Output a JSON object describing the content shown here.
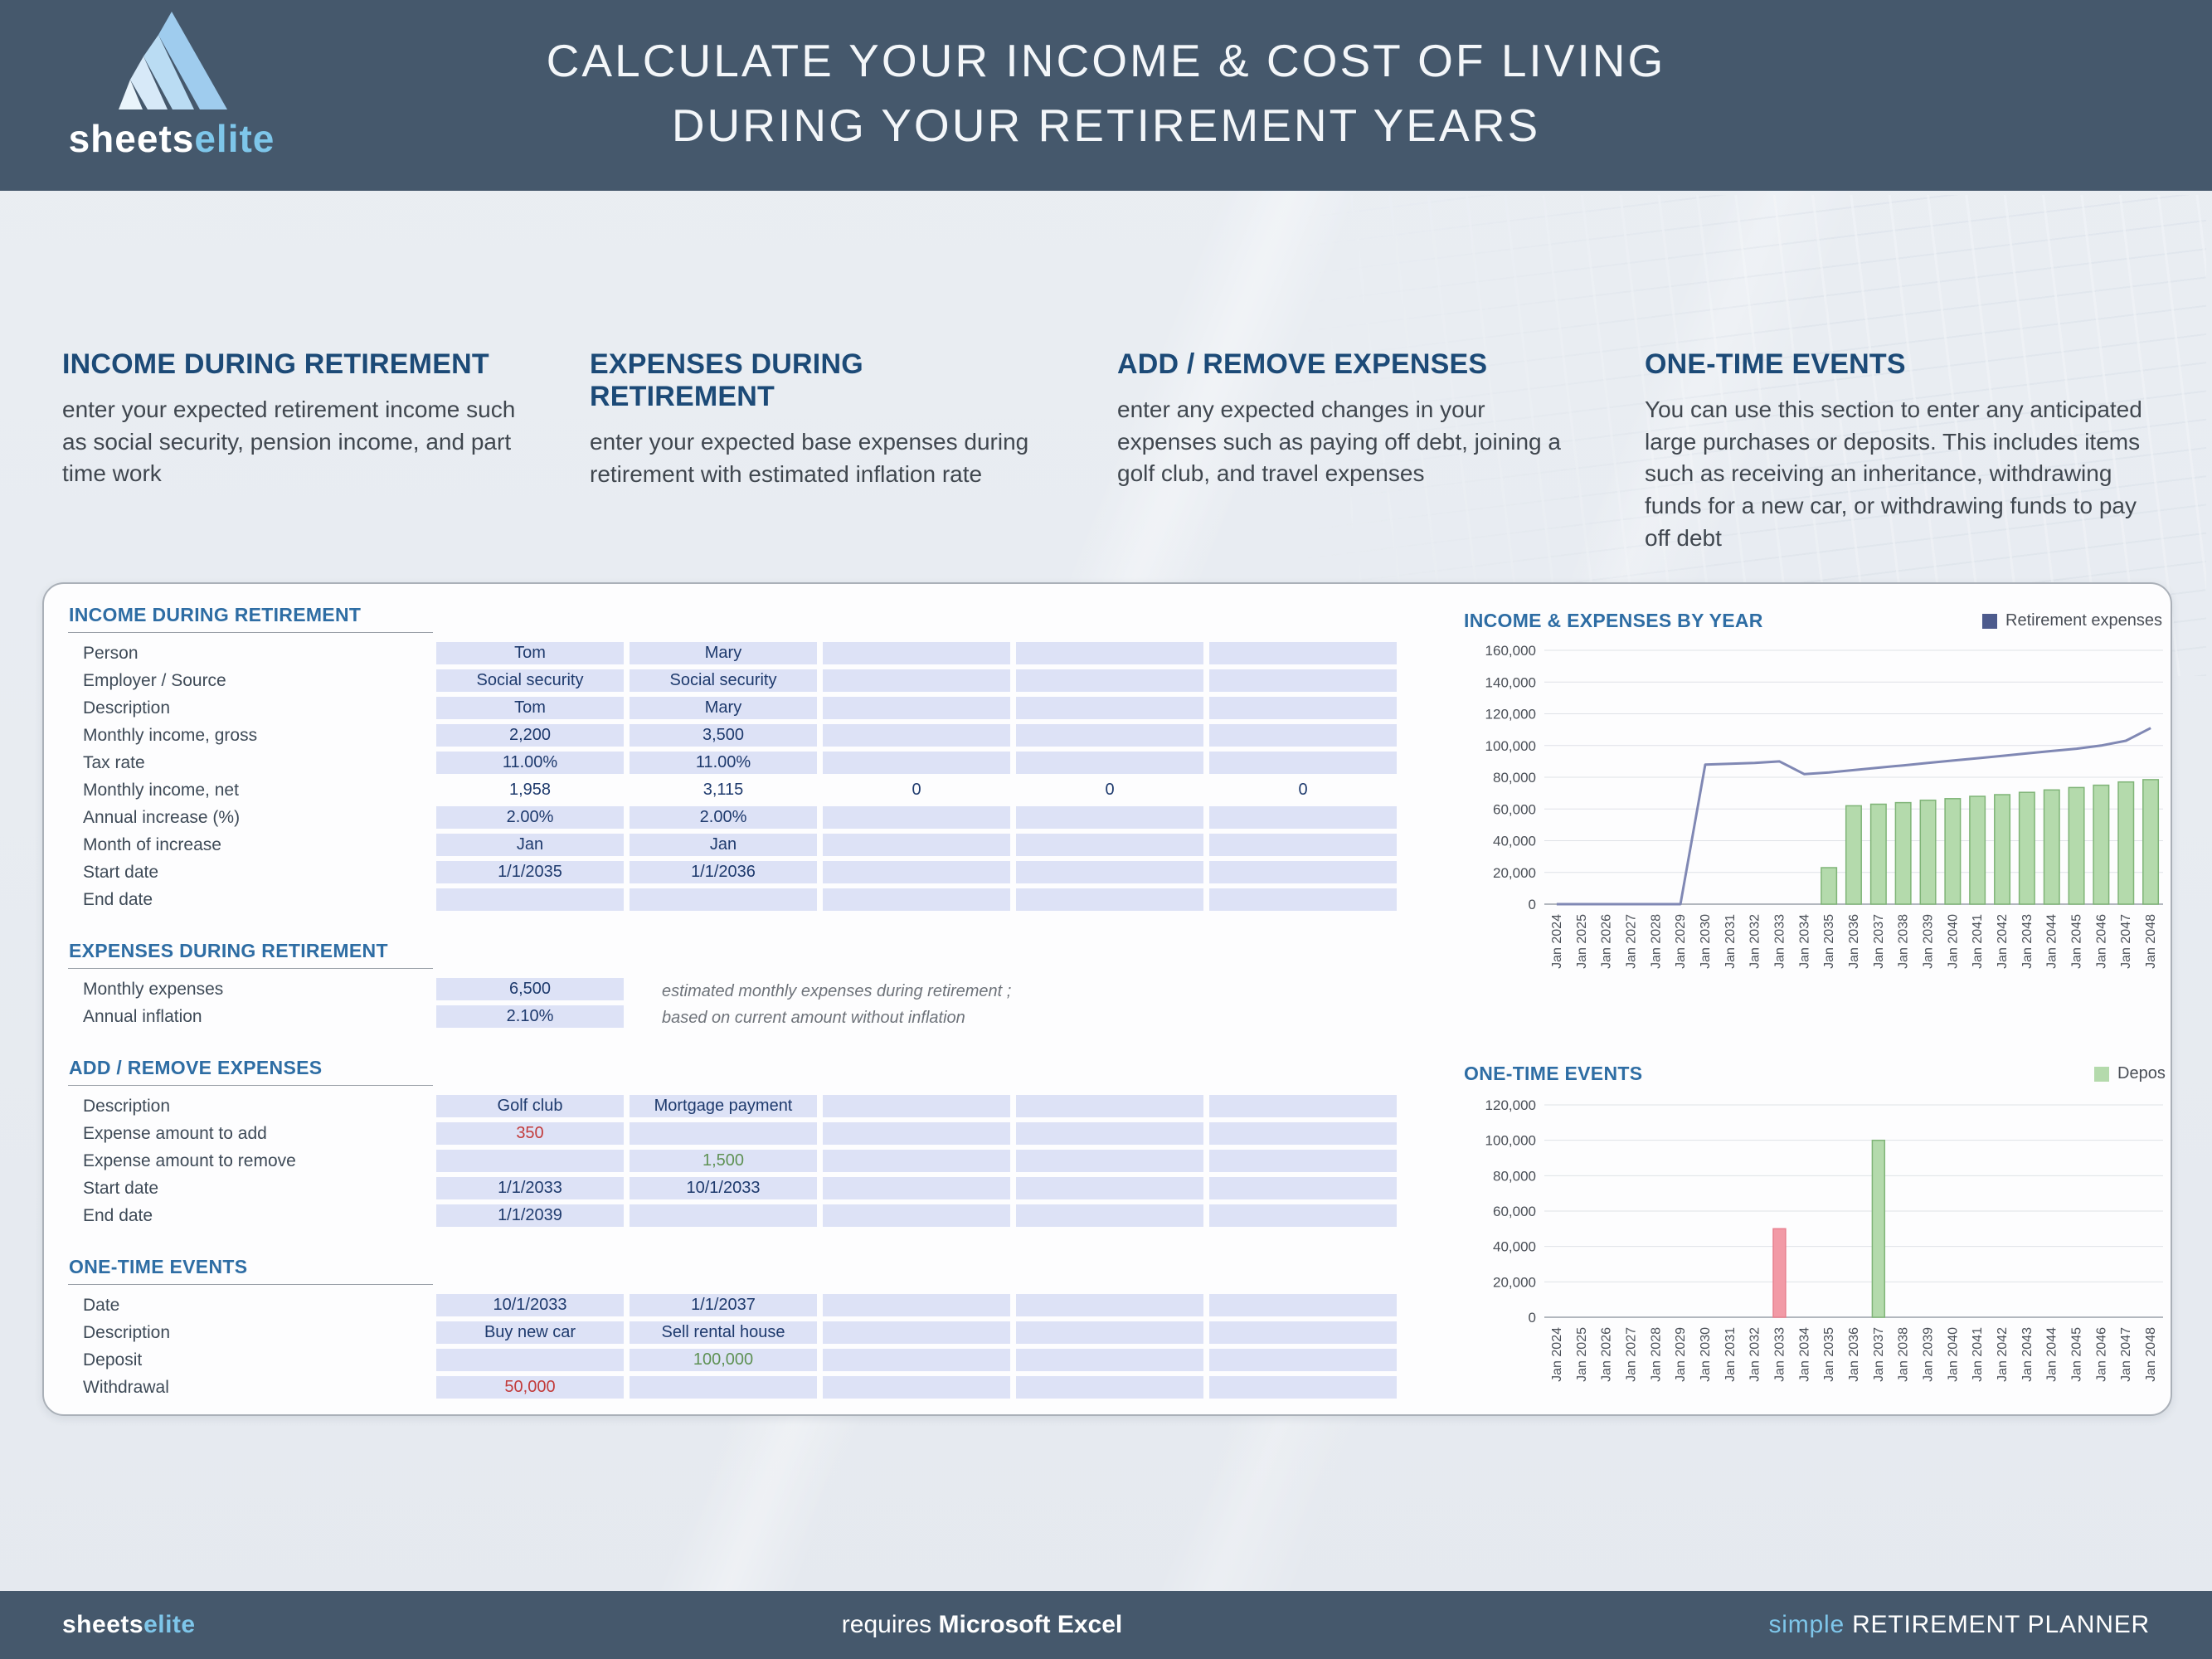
{
  "brand": {
    "name_primary": "sheets",
    "name_accent": "elite"
  },
  "header": {
    "title_line1": "CALCULATE YOUR INCOME & COST OF LIVING",
    "title_line2": "DURING YOUR RETIREMENT YEARS"
  },
  "intro": {
    "columns": [
      {
        "heading": "INCOME DURING RETIREMENT",
        "body": "enter your expected retirement income such as social security, pension income, and part time work"
      },
      {
        "heading": "EXPENSES DURING RETIREMENT",
        "body": "enter your expected base expenses during retirement with estimated inflation rate"
      },
      {
        "heading": "ADD / REMOVE EXPENSES",
        "body": "enter any expected changes in your expenses such as paying off debt, joining a golf club, and travel expenses"
      },
      {
        "heading": "ONE-TIME EVENTS",
        "body": "You can use this section to enter any anticipated large purchases or deposits. This includes items such as receiving an inheritance, withdrawing funds for a new car, or withdrawing funds to pay off debt"
      }
    ]
  },
  "sheet": {
    "sections": [
      {
        "id": "income-during-retirement",
        "title": "INCOME DURING RETIREMENT",
        "cols": 5,
        "rows": [
          {
            "label": "Person",
            "cells": [
              "Tom",
              "Mary",
              "",
              "",
              ""
            ]
          },
          {
            "label": "Employer / Source",
            "cells": [
              "Social security",
              "Social security",
              "",
              "",
              ""
            ]
          },
          {
            "label": "Description",
            "cells": [
              "Tom",
              "Mary",
              "",
              "",
              ""
            ]
          },
          {
            "label": "Monthly income, gross",
            "cells": [
              "2,200",
              "3,500",
              "",
              "",
              ""
            ]
          },
          {
            "label": "Tax rate",
            "cells": [
              "11.00%",
              "11.00%",
              "",
              "",
              ""
            ]
          },
          {
            "label": "Monthly income, net",
            "plain": true,
            "cells": [
              "1,958",
              "3,115",
              "0",
              "0",
              "0"
            ]
          },
          {
            "label": "Annual increase (%)",
            "cells": [
              "2.00%",
              "2.00%",
              "",
              "",
              ""
            ]
          },
          {
            "label": "Month of increase",
            "cells": [
              "Jan",
              "Jan",
              "",
              "",
              ""
            ]
          },
          {
            "label": "Start date",
            "cells": [
              "1/1/2035",
              "1/1/2036",
              "",
              "",
              ""
            ]
          },
          {
            "label": "End date",
            "cells": [
              "",
              "",
              "",
              "",
              ""
            ]
          }
        ]
      },
      {
        "id": "expenses-during-retirement",
        "title": "EXPENSES DURING RETIREMENT",
        "cols": 1,
        "note": [
          "estimated monthly expenses during retirement ;",
          "based on current amount without inflation"
        ],
        "rows": [
          {
            "label": "Monthly expenses",
            "cells": [
              "6,500"
            ]
          },
          {
            "label": "Annual inflation",
            "cells": [
              "2.10%"
            ]
          }
        ]
      },
      {
        "id": "add-remove-expenses",
        "title": "ADD / REMOVE EXPENSES",
        "cols": 5,
        "rows": [
          {
            "label": "Description",
            "cells": [
              "Golf club",
              "Mortgage payment",
              "",
              "",
              ""
            ]
          },
          {
            "label": "Expense amount to add",
            "cells": [
              {
                "t": "350",
                "c": "red"
              },
              "",
              "",
              "",
              ""
            ]
          },
          {
            "label": "Expense amount to remove",
            "cells": [
              "",
              {
                "t": "1,500",
                "c": "green"
              },
              "",
              "",
              ""
            ]
          },
          {
            "label": "Start date",
            "cells": [
              "1/1/2033",
              "10/1/2033",
              "",
              "",
              ""
            ]
          },
          {
            "label": "End date",
            "cells": [
              "1/1/2039",
              "",
              "",
              "",
              ""
            ]
          }
        ]
      },
      {
        "id": "one-time-events",
        "title": "ONE-TIME EVENTS",
        "cols": 5,
        "rows": [
          {
            "label": "Date",
            "cells": [
              "10/1/2033",
              "1/1/2037",
              "",
              "",
              ""
            ]
          },
          {
            "label": "Description",
            "cells": [
              "Buy new car",
              "Sell rental house",
              "",
              "",
              ""
            ]
          },
          {
            "label": "Deposit",
            "cells": [
              "",
              {
                "t": "100,000",
                "c": "green"
              },
              "",
              "",
              ""
            ]
          },
          {
            "label": "Withdrawal",
            "cells": [
              {
                "t": "50,000",
                "c": "red"
              },
              "",
              "",
              "",
              ""
            ]
          }
        ]
      }
    ]
  },
  "chart_data": [
    {
      "id": "income-expenses-by-year",
      "type": "line",
      "title": "INCOME & EXPENSES BY YEAR",
      "legend": [
        {
          "label": "Retirement expenses",
          "color": "#4d5b8d"
        }
      ],
      "x": [
        "Jan 2024",
        "Jan 2025",
        "Jan 2026",
        "Jan 2027",
        "Jan 2028",
        "Jan 2029",
        "Jan 2030",
        "Jan 2031",
        "Jan 2032",
        "Jan 2033",
        "Jan 2034",
        "Jan 2035",
        "Jan 2036",
        "Jan 2037",
        "Jan 2038",
        "Jan 2039",
        "Jan 2040",
        "Jan 2041",
        "Jan 2042",
        "Jan 2043",
        "Jan 2044",
        "Jan 2045",
        "Jan 2046",
        "Jan 2047",
        "Jan 2048"
      ],
      "ylim": [
        0,
        160000
      ],
      "ytick": 20000,
      "series": [
        {
          "name": "Income",
          "type": "bar",
          "color": "#b4daac",
          "border": "#7fb477",
          "values": [
            0,
            0,
            0,
            0,
            0,
            0,
            0,
            0,
            0,
            0,
            0,
            23000,
            62000,
            63000,
            64000,
            65500,
            66500,
            68000,
            69000,
            70500,
            72000,
            73500,
            75000,
            77000,
            78500
          ]
        },
        {
          "name": "Retirement expenses",
          "type": "line",
          "color": "#8088b4",
          "values": [
            0,
            0,
            0,
            0,
            0,
            0,
            88000,
            88500,
            89000,
            90000,
            82000,
            83000,
            84500,
            86000,
            87500,
            89000,
            90500,
            92000,
            93500,
            95000,
            96500,
            98000,
            100000,
            103000,
            111000
          ]
        }
      ]
    },
    {
      "id": "one-time-events",
      "type": "bar",
      "title": "ONE-TIME EVENTS",
      "legend": [
        {
          "label": "Depos",
          "color": "#b4daac"
        }
      ],
      "x": [
        "Jan 2024",
        "Jan 2025",
        "Jan 2026",
        "Jan 2027",
        "Jan 2028",
        "Jan 2029",
        "Jan 2030",
        "Jan 2031",
        "Jan 2032",
        "Jan 2033",
        "Jan 2034",
        "Jan 2035",
        "Jan 2036",
        "Jan 2037",
        "Jan 2038",
        "Jan 2039",
        "Jan 2040",
        "Jan 2041",
        "Jan 2042",
        "Jan 2043",
        "Jan 2044",
        "Jan 2045",
        "Jan 2046",
        "Jan 2047",
        "Jan 2048"
      ],
      "ylim": [
        0,
        120000
      ],
      "ytick": 20000,
      "series": [
        {
          "name": "Withdrawals",
          "type": "bar",
          "color": "#f29aa6",
          "border": "#e8808f",
          "values": [
            0,
            0,
            0,
            0,
            0,
            0,
            0,
            0,
            0,
            50000,
            0,
            0,
            0,
            0,
            0,
            0,
            0,
            0,
            0,
            0,
            0,
            0,
            0,
            0,
            0
          ]
        },
        {
          "name": "Deposits",
          "type": "bar",
          "color": "#b4daac",
          "border": "#7fb477",
          "values": [
            0,
            0,
            0,
            0,
            0,
            0,
            0,
            0,
            0,
            0,
            0,
            0,
            0,
            100000,
            0,
            0,
            0,
            0,
            0,
            0,
            0,
            0,
            0,
            0,
            0
          ]
        }
      ]
    }
  ],
  "footer": {
    "left_primary": "sheets",
    "left_accent": "elite",
    "center_normal": "requires ",
    "center_bold": "Microsoft Excel",
    "right_accent": "simple ",
    "right_primary": "RETIREMENT PLANNER"
  },
  "colors": {
    "header_bg": "#45586c",
    "accent_blue": "#7ec6ea",
    "heading_navy": "#1c4a77",
    "section_title_blue": "#2e6da4",
    "cell_fill": "#dde2f6",
    "cell_value_navy": "#1e3a6d",
    "negative_red": "#c23b3b",
    "positive_green": "#5e9154",
    "expenses_line": "#8088b4",
    "income_bar": "#b4daac",
    "withdrawal_bar": "#f29aa6",
    "legend_navy": "#4d5b8d"
  }
}
